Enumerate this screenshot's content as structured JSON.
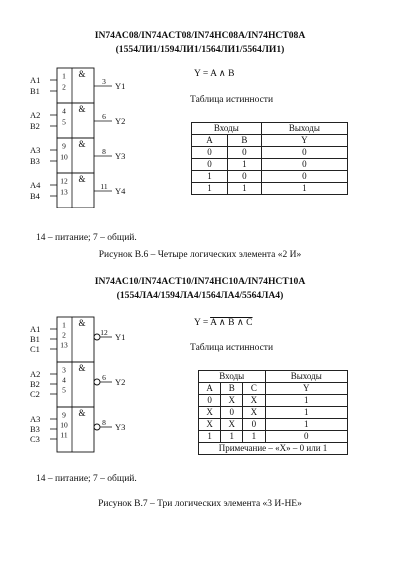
{
  "fig6": {
    "title_line1": "IN74AC08/IN74ACT08/IN74HC08A/IN74HCT08A",
    "title_line2": "(1554ЛИ1/1594ЛИ1/1564ЛИ1/5564ЛИ1)",
    "formula": "Y = A ∧ B",
    "truth_heading": "Таблица истинности",
    "inputs_label": "Входы",
    "outputs_label": "Выходы",
    "columns": [
      "A",
      "B",
      "Y"
    ],
    "rows": [
      [
        "0",
        "0",
        "0"
      ],
      [
        "0",
        "1",
        "0"
      ],
      [
        "1",
        "0",
        "0"
      ],
      [
        "1",
        "1",
        "1"
      ]
    ],
    "gate_symbol": "&",
    "gates": [
      {
        "in": [
          {
            "name": "A1",
            "pin": "1"
          },
          {
            "name": "B1",
            "pin": "2"
          }
        ],
        "out": {
          "name": "Y1",
          "pin": "3"
        }
      },
      {
        "in": [
          {
            "name": "A2",
            "pin": "4"
          },
          {
            "name": "B2",
            "pin": "5"
          }
        ],
        "out": {
          "name": "Y2",
          "pin": "6"
        }
      },
      {
        "in": [
          {
            "name": "A3",
            "pin": "9"
          },
          {
            "name": "B3",
            "pin": "10"
          }
        ],
        "out": {
          "name": "Y3",
          "pin": "8"
        }
      },
      {
        "in": [
          {
            "name": "A4",
            "pin": "12"
          },
          {
            "name": "B4",
            "pin": "13"
          }
        ],
        "out": {
          "name": "Y4",
          "pin": "11"
        }
      }
    ],
    "power_note": "14 – питание; 7 – общий.",
    "caption": "Рисунок В.6 – Четыре логических элемента «2 И»"
  },
  "fig7": {
    "title_line1": "IN74AC10/IN74ACT10/IN74HC10A/IN74HCT10A",
    "title_line2": "(1554ЛА4/1594ЛА4/1564ЛА4/5564ЛА4)",
    "formula_prefix": "Y = ",
    "formula_overlined": "A ∧ B ∧ C",
    "truth_heading": "Таблица истинности",
    "inputs_label": "Входы",
    "outputs_label": "Выходы",
    "columns": [
      "A",
      "B",
      "C",
      "Y"
    ],
    "rows": [
      [
        "0",
        "X",
        "X",
        "1"
      ],
      [
        "X",
        "0",
        "X",
        "1"
      ],
      [
        "X",
        "X",
        "0",
        "1"
      ],
      [
        "1",
        "1",
        "1",
        "0"
      ]
    ],
    "note": "Примечание – «Х» – 0 или 1",
    "gate_symbol": "&",
    "gates": [
      {
        "in": [
          {
            "name": "A1",
            "pin": "1"
          },
          {
            "name": "B1",
            "pin": "2"
          },
          {
            "name": "C1",
            "pin": "13"
          }
        ],
        "out": {
          "name": "Y1",
          "pin": "12"
        }
      },
      {
        "in": [
          {
            "name": "A2",
            "pin": "3"
          },
          {
            "name": "B2",
            "pin": "4"
          },
          {
            "name": "C2",
            "pin": "5"
          }
        ],
        "out": {
          "name": "Y2",
          "pin": "6"
        }
      },
      {
        "in": [
          {
            "name": "A3",
            "pin": "9"
          },
          {
            "name": "B3",
            "pin": "10"
          },
          {
            "name": "C3",
            "pin": "11"
          }
        ],
        "out": {
          "name": "Y3",
          "pin": "8"
        }
      }
    ],
    "power_note": "14 – питание; 7 – общий.",
    "caption": "Рисунок В.7 – Три логических элемента «3 И-НЕ»"
  }
}
